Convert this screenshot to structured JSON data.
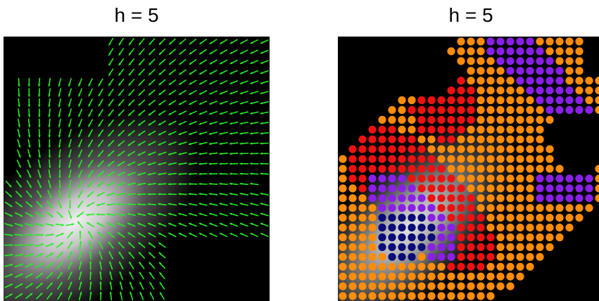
{
  "chart_data": [
    {
      "type": "vector_field",
      "title": "h = 5",
      "background": "#000000",
      "arrow_color": "#22ee22",
      "density_peak": [
        0.27,
        0.3
      ],
      "grid": [
        26,
        26
      ]
    },
    {
      "type": "cluster_dot_map",
      "title": "h = 5",
      "background": "#000000",
      "grid": [
        27,
        27
      ],
      "cluster_colors": {
        "navy": "#0b0b7a",
        "purple": "#8a1fe8",
        "red": "#ee1111",
        "orange": "#ff8c0a"
      }
    }
  ]
}
